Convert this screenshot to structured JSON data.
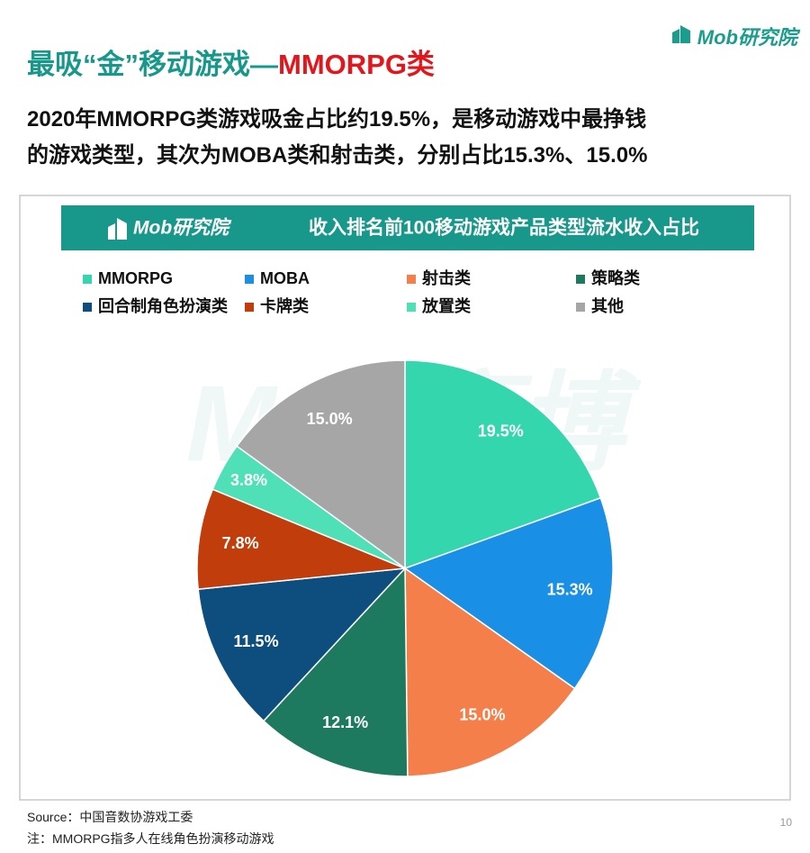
{
  "slide": {
    "logo": "Mob研究院",
    "title_part1": "最吸“金”移动游戏—",
    "title_part2": "MMORPG类",
    "subtitle_line1": "2020年MMORPG类游戏吸金占比约19.5%，是移动游戏中最挣钱",
    "subtitle_line2": "的游戏类型，其次为MOBA类和射击类，分别占比15.3%、15.0%",
    "watermark": "Mob袤博",
    "source": "Source：中国音数协游戏工委",
    "note": "注：MMORPG指多人在线角色扮演移动游戏",
    "page_number": "10"
  },
  "chart_data": {
    "type": "pie",
    "title": "收入排名前100移动游戏产品类型流水收入占比",
    "categories": [
      "MMORPG",
      "MOBA",
      "射击类",
      "策略类",
      "回合制角色扮演类",
      "卡牌类",
      "放置类",
      "其他"
    ],
    "values": [
      19.5,
      15.3,
      15.0,
      12.1,
      11.5,
      7.8,
      3.8,
      15.0
    ],
    "value_labels": [
      "19.5%",
      "15.3%",
      "15.0%",
      "12.1%",
      "11.5%",
      "7.8%",
      "3.8%",
      "15.0%"
    ],
    "colors": [
      "#34d6ad",
      "#1a8fe6",
      "#f47f4a",
      "#1d7a5f",
      "#0d4e7f",
      "#c13d0b",
      "#4fe0b8",
      "#a6a6a6"
    ]
  }
}
